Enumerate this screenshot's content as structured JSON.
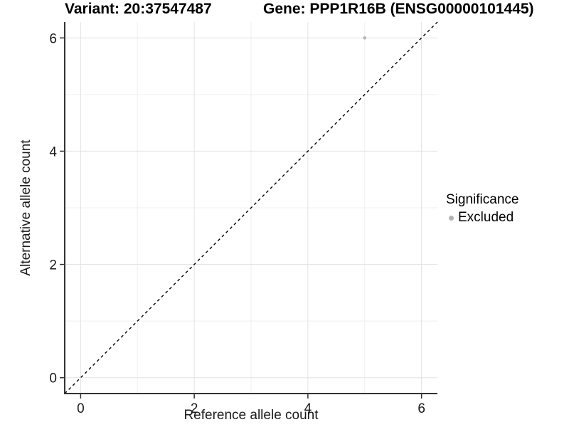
{
  "titles": {
    "left": "Variant: 20:37547487",
    "right": "Gene: PPP1R16B (ENSG00000101445)"
  },
  "chart_data": {
    "type": "scatter",
    "xlabel": "Reference allele count",
    "ylabel": "Alternative allele count",
    "xlim": [
      -0.28,
      6.28
    ],
    "ylim": [
      -0.28,
      6.28
    ],
    "x_ticks": [
      0,
      2,
      4,
      6
    ],
    "y_ticks": [
      0,
      2,
      4,
      6
    ],
    "x_minor_ticks": [
      1,
      3,
      5
    ],
    "y_minor_ticks": [
      1,
      3,
      5
    ],
    "grid": "major and minor gridlines, white background",
    "identity_line": {
      "style": "dashed",
      "color": "#000000",
      "from": [
        -0.28,
        -0.28
      ],
      "to": [
        6.28,
        6.28
      ]
    },
    "series": [
      {
        "name": "Excluded",
        "color": "#b5b5b5",
        "points": [
          {
            "x": 5,
            "y": 6
          }
        ]
      }
    ],
    "legend": {
      "title": "Significance",
      "position": "right",
      "entries": [
        {
          "label": "Excluded",
          "color": "#b3b3b3"
        }
      ]
    }
  },
  "colors": {
    "axis_line": "#333333",
    "major_grid": "#e2e2e2",
    "minor_grid": "#efefef",
    "tick_text": "#1a1a1a",
    "point": "#b5b5b5"
  }
}
